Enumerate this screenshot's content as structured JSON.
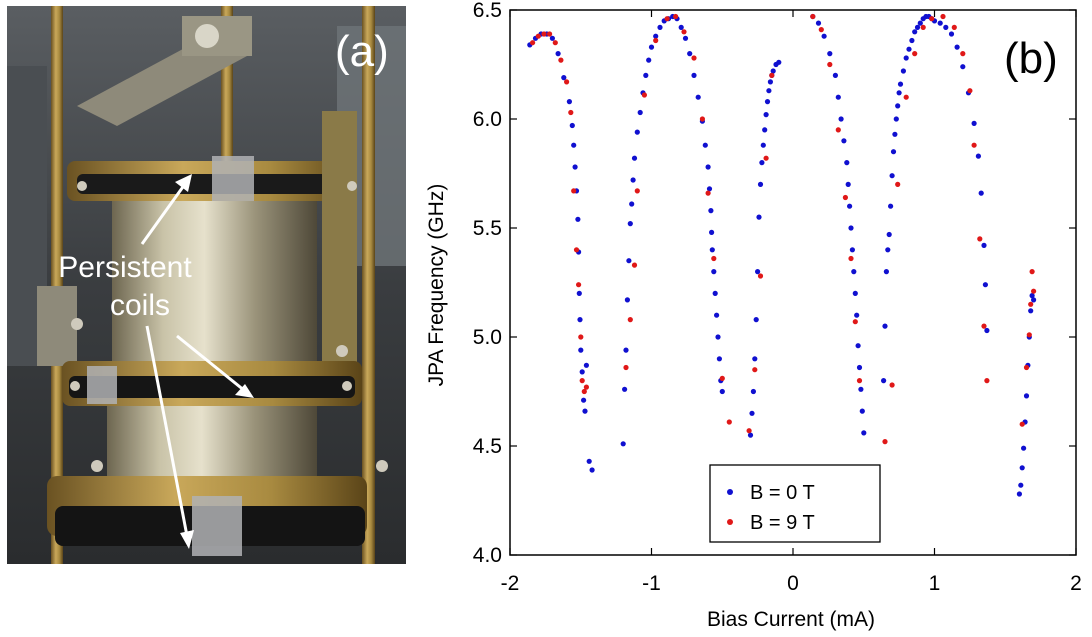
{
  "photo": {
    "panel_label": "(a)",
    "annotation_line1": "Persistent",
    "annotation_line2": "coils"
  },
  "chart_data": {
    "type": "scatter",
    "panel_label": "(b)",
    "title": "",
    "xlabel": "Bias Current (mA)",
    "ylabel": "JPA Frequency (GHz)",
    "xlim": [
      -2,
      2
    ],
    "ylim": [
      4.0,
      6.5
    ],
    "xticks": [
      -2,
      -1,
      0,
      1,
      2
    ],
    "xtick_labels": [
      "-2",
      "-1",
      "0",
      "1",
      "2"
    ],
    "yticks": [
      4.0,
      4.5,
      5.0,
      5.5,
      6.0,
      6.5
    ],
    "ytick_labels": [
      "4.0",
      "4.5",
      "5.0",
      "5.5",
      "6.0",
      "6.5"
    ],
    "grid": false,
    "legend_position": "bottom-center",
    "series": [
      {
        "name": "B = 0 T",
        "color": "#1010d0",
        "x": [
          -1.86,
          -1.82,
          -1.78,
          -1.74,
          -1.7,
          -1.66,
          -1.62,
          -1.58,
          -1.56,
          -1.55,
          -1.54,
          -1.53,
          -1.52,
          -1.515,
          -1.51,
          -1.505,
          -1.5,
          -1.49,
          -1.48,
          -1.47,
          -1.46,
          -1.44,
          -1.42,
          -1.2,
          -1.19,
          -1.18,
          -1.17,
          -1.16,
          -1.15,
          -1.14,
          -1.13,
          -1.12,
          -1.1,
          -1.08,
          -1.06,
          -1.04,
          -1.02,
          -1.0,
          -0.97,
          -0.94,
          -0.91,
          -0.88,
          -0.85,
          -0.82,
          -0.79,
          -0.76,
          -0.73,
          -0.7,
          -0.67,
          -0.64,
          -0.62,
          -0.6,
          -0.59,
          -0.58,
          -0.575,
          -0.57,
          -0.56,
          -0.55,
          -0.54,
          -0.53,
          -0.52,
          -0.51,
          -0.5,
          -0.3,
          -0.29,
          -0.28,
          -0.27,
          -0.26,
          -0.25,
          -0.24,
          -0.23,
          -0.22,
          -0.21,
          -0.2,
          -0.19,
          -0.18,
          -0.17,
          -0.16,
          -0.15,
          -0.14,
          -0.12,
          -0.1,
          0.14,
          0.18,
          0.22,
          0.26,
          0.3,
          0.32,
          0.34,
          0.36,
          0.38,
          0.39,
          0.4,
          0.41,
          0.42,
          0.43,
          0.44,
          0.45,
          0.46,
          0.47,
          0.48,
          0.49,
          0.5,
          0.64,
          0.65,
          0.66,
          0.67,
          0.68,
          0.69,
          0.7,
          0.71,
          0.72,
          0.73,
          0.74,
          0.75,
          0.76,
          0.78,
          0.8,
          0.82,
          0.84,
          0.86,
          0.88,
          0.9,
          0.92,
          0.94,
          0.96,
          0.98,
          1.0,
          1.04,
          1.08,
          1.12,
          1.16,
          1.2,
          1.24,
          1.28,
          1.31,
          1.33,
          1.35,
          1.36,
          1.37,
          1.6,
          1.61,
          1.62,
          1.63,
          1.64,
          1.65,
          1.66,
          1.67,
          1.68,
          1.69,
          1.7
        ],
        "y": [
          6.34,
          6.37,
          6.39,
          6.39,
          6.37,
          6.3,
          6.19,
          6.08,
          5.97,
          5.88,
          5.78,
          5.67,
          5.54,
          5.39,
          5.2,
          5.08,
          4.94,
          4.84,
          4.71,
          4.66,
          4.87,
          4.43,
          4.39,
          4.51,
          4.76,
          4.94,
          5.17,
          5.35,
          5.52,
          5.61,
          5.72,
          5.82,
          5.94,
          6.03,
          6.12,
          6.2,
          6.27,
          6.33,
          6.38,
          6.42,
          6.45,
          6.46,
          6.47,
          6.46,
          6.42,
          6.37,
          6.3,
          6.2,
          6.1,
          5.99,
          5.88,
          5.78,
          5.68,
          5.58,
          5.48,
          5.4,
          5.3,
          5.2,
          5.1,
          5.0,
          4.9,
          4.8,
          4.75,
          4.55,
          4.65,
          4.75,
          4.9,
          5.08,
          5.3,
          5.55,
          5.7,
          5.8,
          5.88,
          5.95,
          6.02,
          6.08,
          6.13,
          6.17,
          6.2,
          6.22,
          6.25,
          6.26,
          6.47,
          6.44,
          6.38,
          6.3,
          6.2,
          6.1,
          6.0,
          5.9,
          5.8,
          5.7,
          5.6,
          5.5,
          5.4,
          5.3,
          5.2,
          5.1,
          4.96,
          4.86,
          4.76,
          4.66,
          4.56,
          4.8,
          5.05,
          5.3,
          5.4,
          5.47,
          5.6,
          5.74,
          5.85,
          5.93,
          6.0,
          6.06,
          6.12,
          6.16,
          6.22,
          6.28,
          6.32,
          6.36,
          6.4,
          6.42,
          6.44,
          6.46,
          6.47,
          6.47,
          6.46,
          6.45,
          6.44,
          6.42,
          6.39,
          6.33,
          6.24,
          6.12,
          5.98,
          5.83,
          5.66,
          5.42,
          5.24,
          5.03,
          4.28,
          4.32,
          4.4,
          4.49,
          4.61,
          4.73,
          4.87,
          5.0,
          5.12,
          5.19,
          5.17
        ]
      },
      {
        "name": "B = 9 T",
        "color": "#e01818",
        "x": [
          -1.84,
          -1.8,
          -1.76,
          -1.72,
          -1.68,
          -1.64,
          -1.6,
          -1.57,
          -1.55,
          -1.53,
          -1.515,
          -1.5,
          -1.49,
          -1.475,
          -1.46,
          -1.18,
          -1.15,
          -1.12,
          -1.1,
          -1.05,
          -0.97,
          -0.89,
          -0.83,
          -0.77,
          -0.7,
          -0.64,
          -0.6,
          -0.56,
          -0.5,
          -0.45,
          -0.31,
          -0.27,
          -0.23,
          -0.19,
          -0.15,
          0.14,
          0.2,
          0.26,
          0.32,
          0.37,
          0.41,
          0.44,
          0.47,
          0.65,
          0.7,
          0.74,
          0.8,
          0.86,
          0.92,
          0.98,
          1.06,
          1.14,
          1.2,
          1.25,
          1.28,
          1.32,
          1.35,
          1.37,
          1.62,
          1.65,
          1.67,
          1.68,
          1.69,
          1.7
        ],
        "y": [
          6.35,
          6.38,
          6.39,
          6.39,
          6.35,
          6.27,
          6.17,
          6.03,
          5.67,
          5.4,
          5.24,
          5.0,
          4.8,
          4.75,
          4.77,
          4.86,
          5.08,
          5.33,
          5.67,
          6.11,
          6.36,
          6.46,
          6.47,
          6.4,
          6.28,
          6.0,
          5.66,
          5.36,
          4.81,
          4.61,
          4.57,
          4.85,
          5.28,
          5.82,
          6.2,
          6.47,
          6.41,
          6.25,
          5.95,
          5.64,
          5.36,
          5.07,
          4.8,
          4.52,
          4.78,
          5.7,
          6.1,
          6.3,
          6.42,
          6.46,
          6.47,
          6.42,
          6.3,
          6.13,
          5.88,
          5.45,
          5.05,
          4.8,
          4.6,
          4.86,
          5.01,
          5.15,
          5.3,
          5.21
        ]
      }
    ]
  }
}
